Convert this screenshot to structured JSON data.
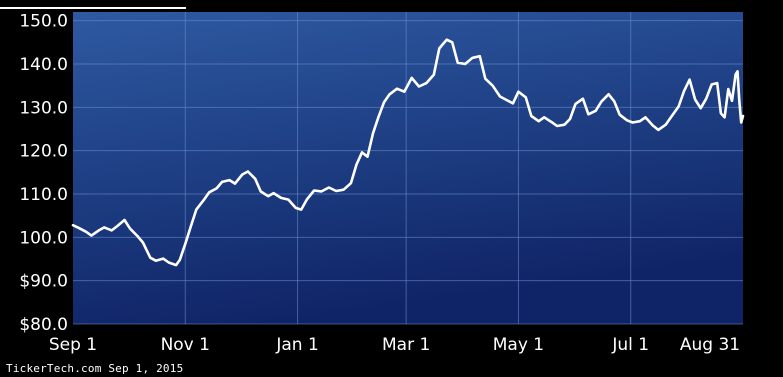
{
  "chart_data": {
    "type": "line",
    "title": "",
    "xlabel": "",
    "ylabel": "",
    "x_ticks": [
      "Sep 1",
      "Nov 1",
      "Jan 1",
      "Mar 1",
      "May 1",
      "Jul 1",
      "Aug 31"
    ],
    "y_ticks": [
      "$80.0",
      "$90.0",
      "100.0",
      "110.0",
      "120.0",
      "130.0",
      "140.0",
      "150.0"
    ],
    "ylim": [
      80,
      152
    ],
    "x_range": [
      "2014-09-01",
      "2015-08-31"
    ],
    "grid": true,
    "series": [
      {
        "points": [
          [
            "2014-09-01",
            102.8
          ],
          [
            "2014-09-04",
            102.2
          ],
          [
            "2014-09-08",
            101.3
          ],
          [
            "2014-09-11",
            100.4
          ],
          [
            "2014-09-15",
            101.6
          ],
          [
            "2014-09-18",
            102.3
          ],
          [
            "2014-09-22",
            101.6
          ],
          [
            "2014-09-25",
            102.6
          ],
          [
            "2014-09-29",
            104.0
          ],
          [
            "2014-10-02",
            102.0
          ],
          [
            "2014-10-06",
            100.3
          ],
          [
            "2014-10-09",
            98.8
          ],
          [
            "2014-10-13",
            95.3
          ],
          [
            "2014-10-16",
            94.6
          ],
          [
            "2014-10-20",
            95.1
          ],
          [
            "2014-10-23",
            94.2
          ],
          [
            "2014-10-27",
            93.6
          ],
          [
            "2014-10-29",
            94.8
          ],
          [
            "2014-11-01",
            98.5
          ],
          [
            "2014-11-04",
            102.5
          ],
          [
            "2014-11-07",
            106.4
          ],
          [
            "2014-11-11",
            108.6
          ],
          [
            "2014-11-14",
            110.4
          ],
          [
            "2014-11-18",
            111.3
          ],
          [
            "2014-11-21",
            112.8
          ],
          [
            "2014-11-25",
            113.2
          ],
          [
            "2014-11-28",
            112.4
          ],
          [
            "2014-12-02",
            114.5
          ],
          [
            "2014-12-05",
            115.2
          ],
          [
            "2014-12-09",
            113.5
          ],
          [
            "2014-12-12",
            110.6
          ],
          [
            "2014-12-16",
            109.5
          ],
          [
            "2014-12-19",
            110.2
          ],
          [
            "2014-12-23",
            109.1
          ],
          [
            "2014-12-27",
            108.7
          ],
          [
            "2014-12-31",
            106.8
          ],
          [
            "2015-01-03",
            106.4
          ],
          [
            "2015-01-06",
            108.7
          ],
          [
            "2015-01-10",
            110.8
          ],
          [
            "2015-01-14",
            110.6
          ],
          [
            "2015-01-18",
            111.5
          ],
          [
            "2015-01-22",
            110.7
          ],
          [
            "2015-01-26",
            111.0
          ],
          [
            "2015-01-30",
            112.5
          ],
          [
            "2015-02-02",
            116.8
          ],
          [
            "2015-02-05",
            119.6
          ],
          [
            "2015-02-08",
            118.6
          ],
          [
            "2015-02-11",
            124.0
          ],
          [
            "2015-02-14",
            127.8
          ],
          [
            "2015-02-17",
            131.2
          ],
          [
            "2015-02-20",
            133.0
          ],
          [
            "2015-02-24",
            134.3
          ],
          [
            "2015-02-28",
            133.6
          ],
          [
            "2015-03-04",
            136.8
          ],
          [
            "2015-03-08",
            134.8
          ],
          [
            "2015-03-12",
            135.6
          ],
          [
            "2015-03-16",
            137.5
          ],
          [
            "2015-03-19",
            143.6
          ],
          [
            "2015-03-23",
            145.6
          ],
          [
            "2015-03-26",
            145.0
          ],
          [
            "2015-03-29",
            140.3
          ],
          [
            "2015-04-02",
            140.0
          ],
          [
            "2015-04-06",
            141.4
          ],
          [
            "2015-04-10",
            141.8
          ],
          [
            "2015-04-13",
            136.6
          ],
          [
            "2015-04-17",
            135.0
          ],
          [
            "2015-04-21",
            132.5
          ],
          [
            "2015-04-24",
            131.8
          ],
          [
            "2015-04-28",
            130.9
          ],
          [
            "2015-05-01",
            133.6
          ],
          [
            "2015-05-05",
            132.3
          ],
          [
            "2015-05-08",
            128.0
          ],
          [
            "2015-05-12",
            126.8
          ],
          [
            "2015-05-15",
            127.7
          ],
          [
            "2015-05-19",
            126.6
          ],
          [
            "2015-05-22",
            125.7
          ],
          [
            "2015-05-26",
            126.0
          ],
          [
            "2015-05-29",
            127.3
          ],
          [
            "2015-06-01",
            130.8
          ],
          [
            "2015-06-05",
            132.0
          ],
          [
            "2015-06-08",
            128.4
          ],
          [
            "2015-06-12",
            129.2
          ],
          [
            "2015-06-15",
            131.3
          ],
          [
            "2015-06-19",
            133.0
          ],
          [
            "2015-06-22",
            131.4
          ],
          [
            "2015-06-25",
            128.3
          ],
          [
            "2015-06-29",
            127.0
          ],
          [
            "2015-07-02",
            126.5
          ],
          [
            "2015-07-06",
            126.8
          ],
          [
            "2015-07-09",
            127.7
          ],
          [
            "2015-07-13",
            125.8
          ],
          [
            "2015-07-16",
            124.8
          ],
          [
            "2015-07-20",
            126.0
          ],
          [
            "2015-07-23",
            127.8
          ],
          [
            "2015-07-27",
            130.2
          ],
          [
            "2015-07-30",
            133.8
          ],
          [
            "2015-08-02",
            136.4
          ],
          [
            "2015-08-05",
            131.8
          ],
          [
            "2015-08-08",
            129.8
          ],
          [
            "2015-08-11",
            132.0
          ],
          [
            "2015-08-14",
            135.3
          ],
          [
            "2015-08-17",
            135.6
          ],
          [
            "2015-08-19",
            128.6
          ],
          [
            "2015-08-21",
            127.7
          ],
          [
            "2015-08-23",
            134.2
          ],
          [
            "2015-08-25",
            131.5
          ],
          [
            "2015-08-27",
            137.6
          ],
          [
            "2015-08-28",
            138.3
          ],
          [
            "2015-08-29",
            131.5
          ],
          [
            "2015-08-30",
            126.5
          ],
          [
            "2015-08-31",
            128.0
          ]
        ]
      }
    ],
    "colors": {
      "line": "#ffffff",
      "plot_bg_light": "#2e5aa2",
      "plot_bg_dark": "#0f2466",
      "grid": "#6d8fd0",
      "page_bg": "#000000"
    }
  },
  "footer": {
    "credit": "TickerTech.com Sep 1, 2015"
  }
}
